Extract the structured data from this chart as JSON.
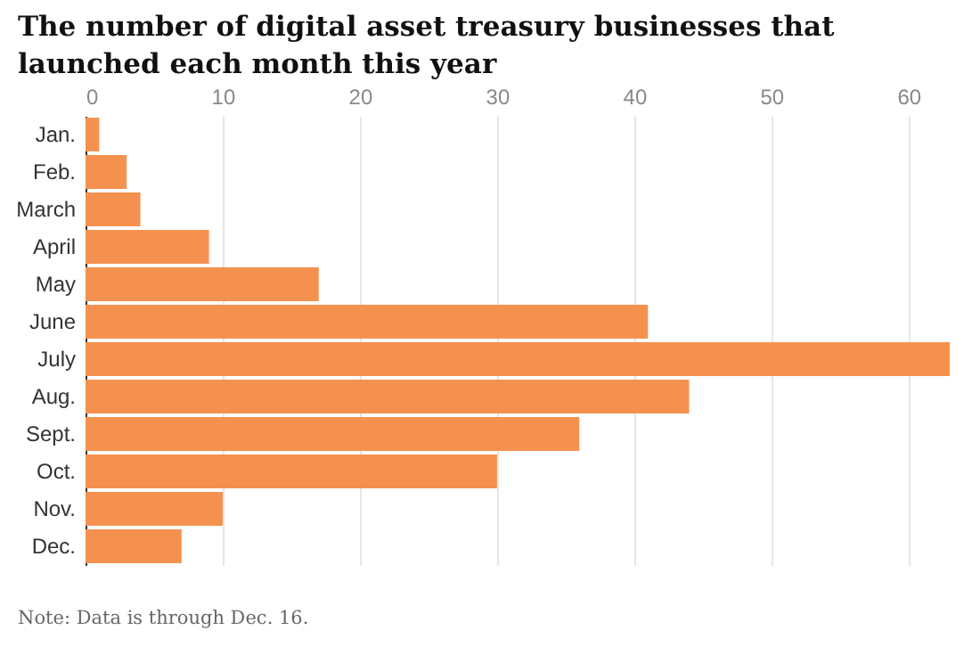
{
  "chart_data": {
    "type": "bar",
    "orientation": "horizontal",
    "title": "The number of digital asset treasury businesses that launched each month this year",
    "categories": [
      "Jan.",
      "Feb.",
      "March",
      "April",
      "May",
      "June",
      "July",
      "Aug.",
      "Sept.",
      "Oct.",
      "Nov.",
      "Dec."
    ],
    "values": [
      1,
      3,
      4,
      9,
      17,
      41,
      63,
      44,
      36,
      30,
      10,
      7
    ],
    "color": "#f5914f",
    "xlim": [
      0,
      63
    ],
    "xticks": [
      0,
      10,
      20,
      30,
      40,
      50,
      60
    ],
    "grid": "x",
    "annotations": [
      "Note: Data is through Dec. 16."
    ]
  }
}
